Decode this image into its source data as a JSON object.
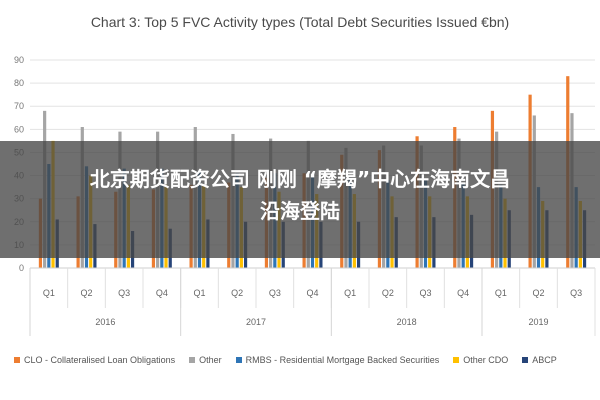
{
  "chart_data": {
    "type": "bar",
    "title": "Chart 3: Top 5 FVC Activity types (Total Debt Securities Issued €bn)",
    "ylim": [
      0,
      90
    ],
    "yticks": [
      0,
      10,
      20,
      30,
      40,
      50,
      60,
      70,
      80,
      90
    ],
    "grid": true,
    "legend_position": "bottom",
    "categories": [
      "Q1",
      "Q2",
      "Q3",
      "Q4",
      "Q1",
      "Q2",
      "Q3",
      "Q4",
      "Q1",
      "Q2",
      "Q3",
      "Q4",
      "Q1",
      "Q2",
      "Q3"
    ],
    "years": [
      {
        "label": "2016",
        "quarters": 4
      },
      {
        "label": "2017",
        "quarters": 4
      },
      {
        "label": "2018",
        "quarters": 4
      },
      {
        "label": "2019",
        "quarters": 3
      }
    ],
    "series": [
      {
        "name": "CLO - Collateralised Loan Obligations",
        "color": "#ed7d31",
        "values": [
          30,
          31,
          33,
          34,
          36,
          37,
          39,
          41,
          49,
          51,
          57,
          61,
          68,
          75,
          83
        ]
      },
      {
        "name": "Other",
        "color": "#a5a5a5",
        "values": [
          68,
          61,
          59,
          59,
          61,
          58,
          56,
          55,
          52,
          53,
          53,
          56,
          59,
          66,
          67
        ]
      },
      {
        "name": "RMBS - Residential Mortgage Backed Securities",
        "color": "#2e75b6",
        "values": [
          45,
          44,
          43,
          43,
          42,
          41,
          41,
          40,
          39,
          38,
          38,
          37,
          36,
          35,
          35
        ]
      },
      {
        "name": "Other CDO",
        "color": "#ffc000",
        "values": [
          55,
          40,
          36,
          36,
          36,
          35,
          33,
          32,
          32,
          31,
          31,
          31,
          30,
          29,
          29
        ]
      },
      {
        "name": "ABCP",
        "color": "#264478",
        "values": [
          21,
          19,
          16,
          17,
          21,
          20,
          20,
          20,
          20,
          22,
          22,
          23,
          25,
          25,
          25
        ]
      }
    ]
  },
  "overlay": {
    "line1": "北京期货配资公司 刚刚 “摩羯”中心在海南文昌",
    "line2": "沿海登陆"
  }
}
